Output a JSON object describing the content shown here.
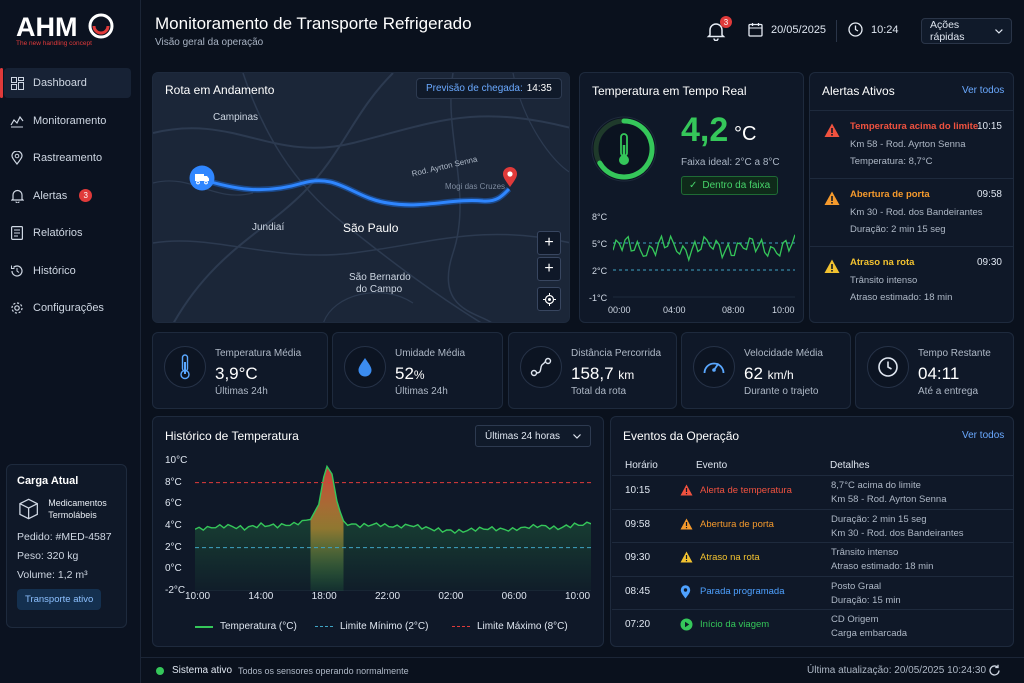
{
  "brand": {
    "name": "AHM",
    "tagline": "The new handling concept"
  },
  "nav": [
    {
      "label": "Dashboard",
      "icon": "dashboard-icon",
      "active": true
    },
    {
      "label": "Monitoramento",
      "icon": "monitor-icon"
    },
    {
      "label": "Rastreamento",
      "icon": "location-pin-icon"
    },
    {
      "label": "Alertas",
      "icon": "bell-icon",
      "badge": "3"
    },
    {
      "label": "Relatórios",
      "icon": "report-icon"
    },
    {
      "label": "Histórico",
      "icon": "history-icon"
    },
    {
      "label": "Configurações",
      "icon": "gear-icon"
    }
  ],
  "cargo": {
    "title": "Carga Atual",
    "product": "Medicamentos Termolábeis",
    "order": "Pedido: #MED-4587",
    "weight": "Peso: 320 kg",
    "volume": "Volume: 1,2 m³",
    "status": "Transporte ativo"
  },
  "header": {
    "title": "Monitoramento de Transporte Refrigerado",
    "subtitle": "Visão geral da operação",
    "notif_count": "3",
    "date": "20/05/2025",
    "time": "10:24",
    "quick_actions": "Ações rápidas"
  },
  "route": {
    "title": "Rota em Andamento",
    "eta_label": "Previsão de chegada:",
    "eta_time": "14:35",
    "places": {
      "campinas": "Campinas",
      "jundiai": "Jundiaí",
      "sao_paulo": "São Paulo",
      "sbc_1": "São Bernardo",
      "sbc_2": "do Campo",
      "road": "Rod. Ayrton Senna",
      "mogi": "Mogi das Cruzes"
    },
    "controls": {
      "zoom_in": "+",
      "zoom_in_2": "+"
    }
  },
  "realtime": {
    "title": "Temperatura em Tempo Real",
    "value": "4,2",
    "unit": "°C",
    "ideal": "Faixa ideal: 2°C a 8°C",
    "status": "Dentro da faixa",
    "y_ticks": [
      "8°C",
      "5°C",
      "2°C",
      "-1°C"
    ],
    "x_ticks": [
      "00:00",
      "04:00",
      "08:00",
      "10:00"
    ],
    "colors": {
      "ok": "#35c75a",
      "threshold": "#3fa4c4"
    }
  },
  "alerts": {
    "title": "Alertas Ativos",
    "view_all": "Ver todos",
    "items": [
      {
        "title": "Temperatura acima do limite",
        "time": "10:15",
        "line1": "Km 58 - Rod. Ayrton Senna",
        "line2": "Temperatura: 8,7°C",
        "color": "#f0523f",
        "icon": "alert-triangle-icon"
      },
      {
        "title": "Abertura de porta",
        "time": "09:58",
        "line1": "Km 30 - Rod. dos Bandeirantes",
        "line2": "Duração: 2 min 15 seg",
        "color": "#f59a2d",
        "icon": "alert-triangle-icon"
      },
      {
        "title": "Atraso na rota",
        "time": "09:30",
        "line1": "Trânsito intenso",
        "line2": "Atraso estimado: 18 min",
        "color": "#f2c230",
        "icon": "alert-triangle-icon"
      }
    ]
  },
  "kpis": [
    {
      "label": "Temperatura Média",
      "value": "3,9°C",
      "unit": "",
      "sub": "Últimas 24h",
      "icon": "thermometer-icon"
    },
    {
      "label": "Umidade Média",
      "value": "52",
      "unit": "%",
      "sub": "Últimas 24h",
      "icon": "droplet-icon"
    },
    {
      "label": "Distância Percorrida",
      "value": "158,7",
      "unit": "km",
      "sub": "Total da rota",
      "icon": "route-icon"
    },
    {
      "label": "Velocidade Média",
      "value": "62",
      "unit": "km/h",
      "sub": "Durante o trajeto",
      "icon": "speedometer-icon"
    },
    {
      "label": "Tempo Restante",
      "value": "04:11",
      "unit": "",
      "sub": "Até a entrega",
      "icon": "clock-icon"
    }
  ],
  "chart_data": {
    "type": "area",
    "title": "Histórico de Temperatura",
    "period": "Últimas 24 horas",
    "x_ticks": [
      "10:00",
      "14:00",
      "18:00",
      "22:00",
      "02:00",
      "06:00",
      "10:00"
    ],
    "y_ticks": [
      "10°C",
      "8°C",
      "6°C",
      "4°C",
      "2°C",
      "0°C",
      "-2°C"
    ],
    "ylim": [
      -2,
      10
    ],
    "x_hours": [
      0,
      1,
      2,
      3,
      4,
      5,
      6,
      7,
      7.5,
      7.8,
      8,
      8.3,
      8.6,
      9,
      10,
      11,
      12,
      13,
      14,
      15,
      16,
      17,
      18,
      19,
      20,
      21,
      22,
      23,
      24
    ],
    "series": [
      {
        "name": "Temperatura (°C)",
        "values": [
          3.7,
          3.9,
          4.0,
          3.8,
          4.1,
          4.0,
          4.2,
          4.6,
          6.0,
          8.5,
          9.5,
          8.8,
          6.3,
          4.3,
          4.0,
          4.2,
          3.9,
          4.1,
          3.8,
          3.6,
          3.5,
          3.7,
          3.8,
          3.6,
          3.9,
          4.0,
          3.8,
          4.1,
          4.2
        ],
        "color": "#35c75a"
      },
      {
        "name": "Limite Mínimo (2°C)",
        "constant": 2,
        "color": "#3fa4c4"
      },
      {
        "name": "Limite Máximo (8°C)",
        "constant": 8,
        "color": "#e03a3a"
      }
    ]
  },
  "events": {
    "title": "Eventos da Operação",
    "view_all": "Ver todos",
    "headers": [
      "Horário",
      "Evento",
      "Detalhes"
    ],
    "rows": [
      {
        "time": "10:15",
        "event": "Alerta de temperatura",
        "d1": "8,7°C acima do limite",
        "d2": "Km 58 - Rod. Ayrton Senna",
        "color": "#f0523f",
        "icon": "alert-triangle-icon"
      },
      {
        "time": "09:58",
        "event": "Abertura de porta",
        "d1": "Duração: 2 min 15 seg",
        "d2": "Km 30 - Rod. dos Bandeirantes",
        "color": "#f59a2d",
        "icon": "alert-triangle-icon"
      },
      {
        "time": "09:30",
        "event": "Atraso na rota",
        "d1": "Trânsito intenso",
        "d2": "Atraso estimado: 18 min",
        "color": "#f2c230",
        "icon": "alert-triangle-icon"
      },
      {
        "time": "08:45",
        "event": "Parada programada",
        "d1": "Posto Graal",
        "d2": "Duração: 15 min",
        "color": "#4ea1ff",
        "icon": "location-pin-icon"
      },
      {
        "time": "07:20",
        "event": "Início da viagem",
        "d1": "CD Origem",
        "d2": "Carga embarcada",
        "color": "#35c75a",
        "icon": "play-circle-icon"
      }
    ]
  },
  "footer": {
    "status": "Sistema ativo",
    "message": "Todos os sensores operando normalmente",
    "updated": "Última atualização: 20/05/2025 10:24:30"
  }
}
